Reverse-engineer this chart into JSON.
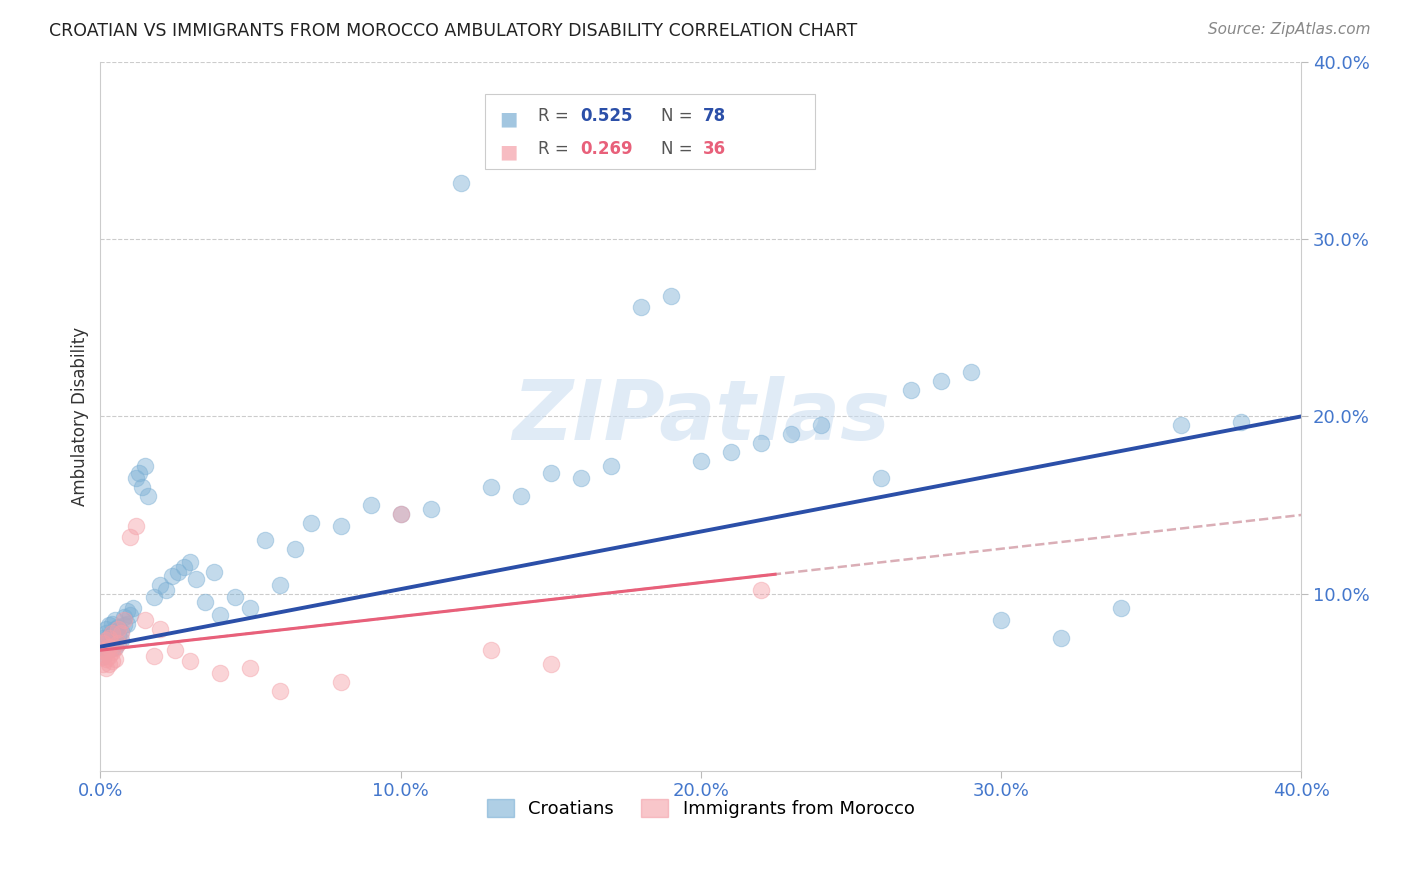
{
  "title": "CROATIAN VS IMMIGRANTS FROM MOROCCO AMBULATORY DISABILITY CORRELATION CHART",
  "source": "Source: ZipAtlas.com",
  "ylabel": "Ambulatory Disability",
  "watermark": "ZIPatlas",
  "xlim": [
    0.0,
    0.4
  ],
  "ylim": [
    0.0,
    0.4
  ],
  "xticks": [
    0.0,
    0.1,
    0.2,
    0.3,
    0.4
  ],
  "yticks": [
    0.1,
    0.2,
    0.3,
    0.4
  ],
  "blue_color": "#7BAFD4",
  "blue_color_edge": "#7BAFD4",
  "pink_color": "#F4A0A8",
  "pink_color_edge": "#F4A0A8",
  "blue_line_color": "#2B4FA8",
  "pink_line_color": "#E8607A",
  "pink_dashed_color": "#D4A0AA",
  "background_color": "#FFFFFF",
  "grid_color": "#CCCCCC",
  "tick_color": "#4477CC",
  "legend_blue_label": "Croatians",
  "legend_pink_label": "Immigrants from Morocco",
  "blue_R": "0.525",
  "blue_N": "78",
  "pink_R": "0.269",
  "pink_N": "36",
  "croatian_x": [
    0.001,
    0.001,
    0.001,
    0.002,
    0.002,
    0.002,
    0.002,
    0.003,
    0.003,
    0.003,
    0.003,
    0.004,
    0.004,
    0.004,
    0.004,
    0.005,
    0.005,
    0.005,
    0.005,
    0.006,
    0.006,
    0.006,
    0.007,
    0.007,
    0.008,
    0.008,
    0.009,
    0.009,
    0.01,
    0.011,
    0.012,
    0.013,
    0.014,
    0.015,
    0.016,
    0.018,
    0.02,
    0.022,
    0.024,
    0.026,
    0.028,
    0.03,
    0.032,
    0.035,
    0.038,
    0.04,
    0.045,
    0.05,
    0.055,
    0.06,
    0.065,
    0.07,
    0.08,
    0.09,
    0.1,
    0.11,
    0.12,
    0.13,
    0.14,
    0.15,
    0.16,
    0.17,
    0.18,
    0.19,
    0.2,
    0.21,
    0.22,
    0.23,
    0.24,
    0.26,
    0.27,
    0.28,
    0.29,
    0.3,
    0.32,
    0.34,
    0.36,
    0.38
  ],
  "croatian_y": [
    0.065,
    0.07,
    0.075,
    0.068,
    0.072,
    0.078,
    0.08,
    0.071,
    0.074,
    0.076,
    0.082,
    0.069,
    0.073,
    0.078,
    0.083,
    0.07,
    0.075,
    0.08,
    0.085,
    0.072,
    0.076,
    0.081,
    0.074,
    0.079,
    0.082,
    0.087,
    0.083,
    0.09,
    0.088,
    0.092,
    0.165,
    0.168,
    0.16,
    0.172,
    0.155,
    0.098,
    0.105,
    0.102,
    0.11,
    0.112,
    0.115,
    0.118,
    0.108,
    0.095,
    0.112,
    0.088,
    0.098,
    0.092,
    0.13,
    0.105,
    0.125,
    0.14,
    0.138,
    0.15,
    0.145,
    0.148,
    0.332,
    0.16,
    0.155,
    0.168,
    0.165,
    0.172,
    0.262,
    0.268,
    0.175,
    0.18,
    0.185,
    0.19,
    0.195,
    0.165,
    0.215,
    0.22,
    0.225,
    0.085,
    0.075,
    0.092,
    0.195,
    0.197
  ],
  "morocco_x": [
    0.001,
    0.001,
    0.001,
    0.001,
    0.002,
    0.002,
    0.002,
    0.002,
    0.003,
    0.003,
    0.003,
    0.003,
    0.004,
    0.004,
    0.004,
    0.005,
    0.005,
    0.006,
    0.006,
    0.007,
    0.008,
    0.01,
    0.012,
    0.015,
    0.018,
    0.02,
    0.025,
    0.03,
    0.04,
    0.05,
    0.06,
    0.08,
    0.1,
    0.13,
    0.15,
    0.22
  ],
  "morocco_y": [
    0.06,
    0.064,
    0.068,
    0.072,
    0.058,
    0.063,
    0.067,
    0.074,
    0.06,
    0.065,
    0.07,
    0.075,
    0.062,
    0.067,
    0.078,
    0.063,
    0.069,
    0.072,
    0.08,
    0.078,
    0.085,
    0.132,
    0.138,
    0.085,
    0.065,
    0.08,
    0.068,
    0.062,
    0.055,
    0.058,
    0.045,
    0.05,
    0.145,
    0.068,
    0.06,
    0.102
  ]
}
